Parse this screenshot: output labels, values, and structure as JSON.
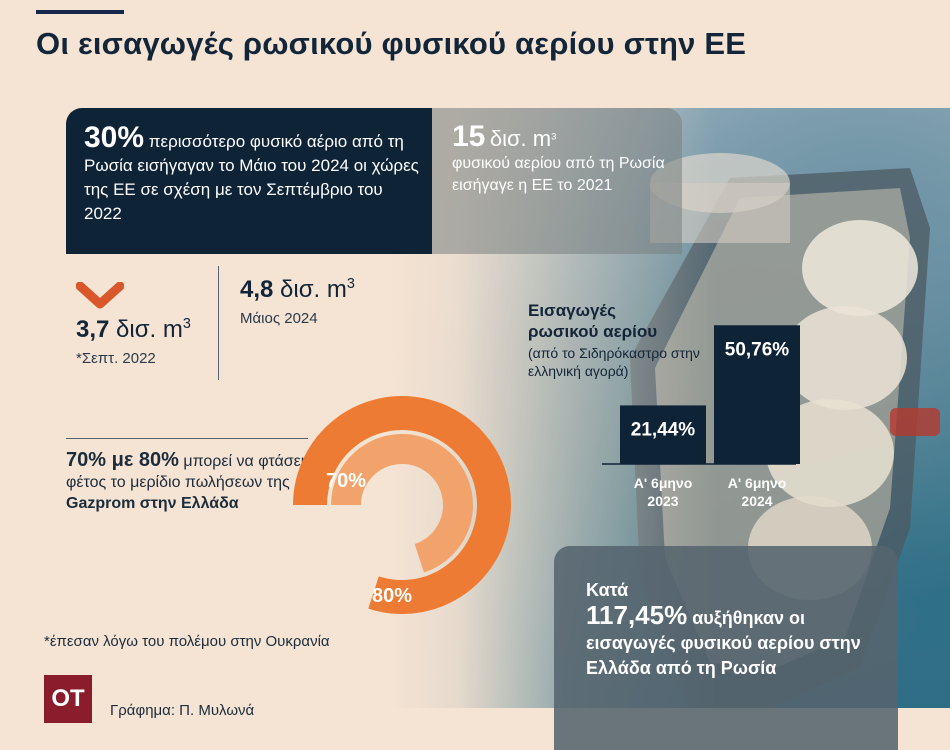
{
  "title": "Οι εισαγωγές ρωσικού φυσικού αερίου στην ΕΕ",
  "box1": {
    "value": "30%",
    "text": "περισσότερο φυσικό αέριο από τη Ρωσία εισήγαγαν το Μάιο του 2024 οι χώρες της ΕΕ σε σχέση με τον Σεπτέμβριο του 2022"
  },
  "box2": {
    "value": "15",
    "unit": "δισ. m",
    "text": "φυσικού αερίου από τη Ρωσία εισήγαγε η ΕΕ το 2021"
  },
  "stat_sept": {
    "value": "3,7",
    "unit": "δισ. m",
    "label": "*Σεπτ. 2022"
  },
  "stat_may": {
    "value": "4,8",
    "unit": "δισ. m",
    "label": "Μάιος 2024"
  },
  "gazprom": {
    "lead": "70% με 80%",
    "text1": "μπορεί να φτάσει φέτος το μερίδιο πωλήσεων της",
    "text2": "Gazprom στην Ελλάδα"
  },
  "footnote": "*έπεσαν λόγω του πολέμου στην Ουκρανία",
  "logo": "ΟΤ",
  "credit": "Γράφημα: Π. Μυλωνά",
  "bigbox": {
    "lead": "Κατά",
    "value": "117,45%",
    "text": "αυξήθηκαν οι εισαγωγές φυσικού αερίου στην Ελλάδα από τη Ρωσία"
  },
  "colors": {
    "orange": "#ee7b33",
    "orange_light": "#f2a36b",
    "navy": "#0f2337",
    "maroon": "#8a1c2c"
  },
  "icons": {
    "down_arrow": "down-arrow-icon"
  },
  "chart_data": [
    {
      "type": "pie",
      "style": "donut-rings",
      "categories": [
        "70%",
        "80%"
      ],
      "values": [
        70,
        80
      ],
      "title": ""
    },
    {
      "type": "bar",
      "title": "Εισαγωγές ρωσικού αερίου",
      "subtitle": "(από το Σιδηρόκαστρο στην ελληνική αγορά)",
      "categories": [
        "Α' 6μηνο 2023",
        "Α' 6μηνο 2024"
      ],
      "values": [
        21.44,
        50.76
      ],
      "value_labels": [
        "21,44%",
        "50,76%"
      ],
      "ylim": [
        0,
        60
      ],
      "grid": false
    }
  ]
}
